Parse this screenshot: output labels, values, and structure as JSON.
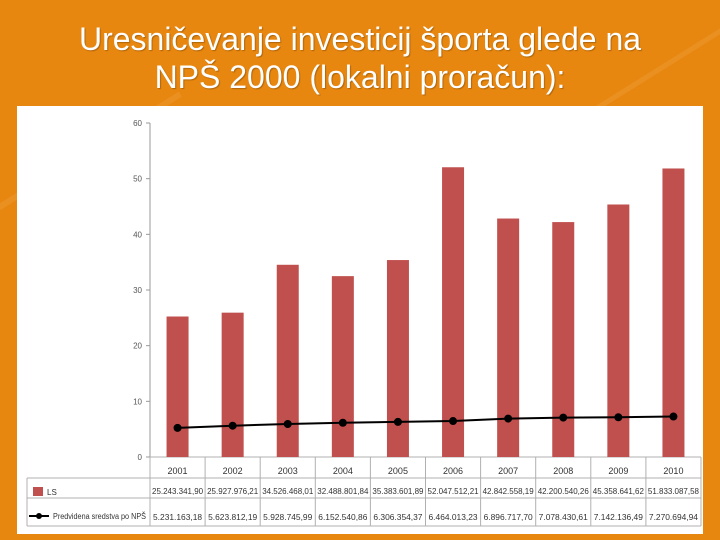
{
  "slide": {
    "title_line1": "Uresničevanje investicij športa glede na",
    "title_line2": "NPŠ 2000 (lokalni proračun):"
  },
  "colors": {
    "background": "#e8870f",
    "bar": "#c0504d",
    "line": "#000000"
  },
  "chart_data": {
    "type": "bar",
    "categories": [
      "2001",
      "2002",
      "2003",
      "2004",
      "2005",
      "2006",
      "2007",
      "2008",
      "2009",
      "2010"
    ],
    "ylim": [
      0,
      60
    ],
    "yticks": [
      "0",
      "10",
      "20",
      "30",
      "40",
      "50",
      "60"
    ],
    "grid": false,
    "legend_position": "bottom (in data table)",
    "series": [
      {
        "name": "LS",
        "type": "bar",
        "values": [
          25.24,
          25.93,
          34.53,
          32.49,
          35.38,
          52.05,
          42.84,
          42.2,
          45.36,
          51.83
        ],
        "labels": [
          "25.243.341,90",
          "25.927.976,21",
          "34.526.468,01",
          "32.488.801,84",
          "35.383.601,89",
          "52.047.512,21",
          "42.842.558,19",
          "42.200.540,26",
          "45.358.641,62",
          "51.833.087,58"
        ]
      },
      {
        "name": "Predvidena sredstva po NPŠ",
        "type": "line",
        "values": [
          5.23,
          5.62,
          5.93,
          6.15,
          6.31,
          6.46,
          6.9,
          7.08,
          7.14,
          7.27
        ],
        "labels": [
          "5.231.163,18",
          "5.623.812,19",
          "5.928.745,99",
          "6.152.540,86",
          "6.306.354,37",
          "6.464.013,23",
          "6.896.717,70",
          "7.078.430,61",
          "7.142.136,49",
          "7.270.694,94"
        ]
      }
    ]
  }
}
